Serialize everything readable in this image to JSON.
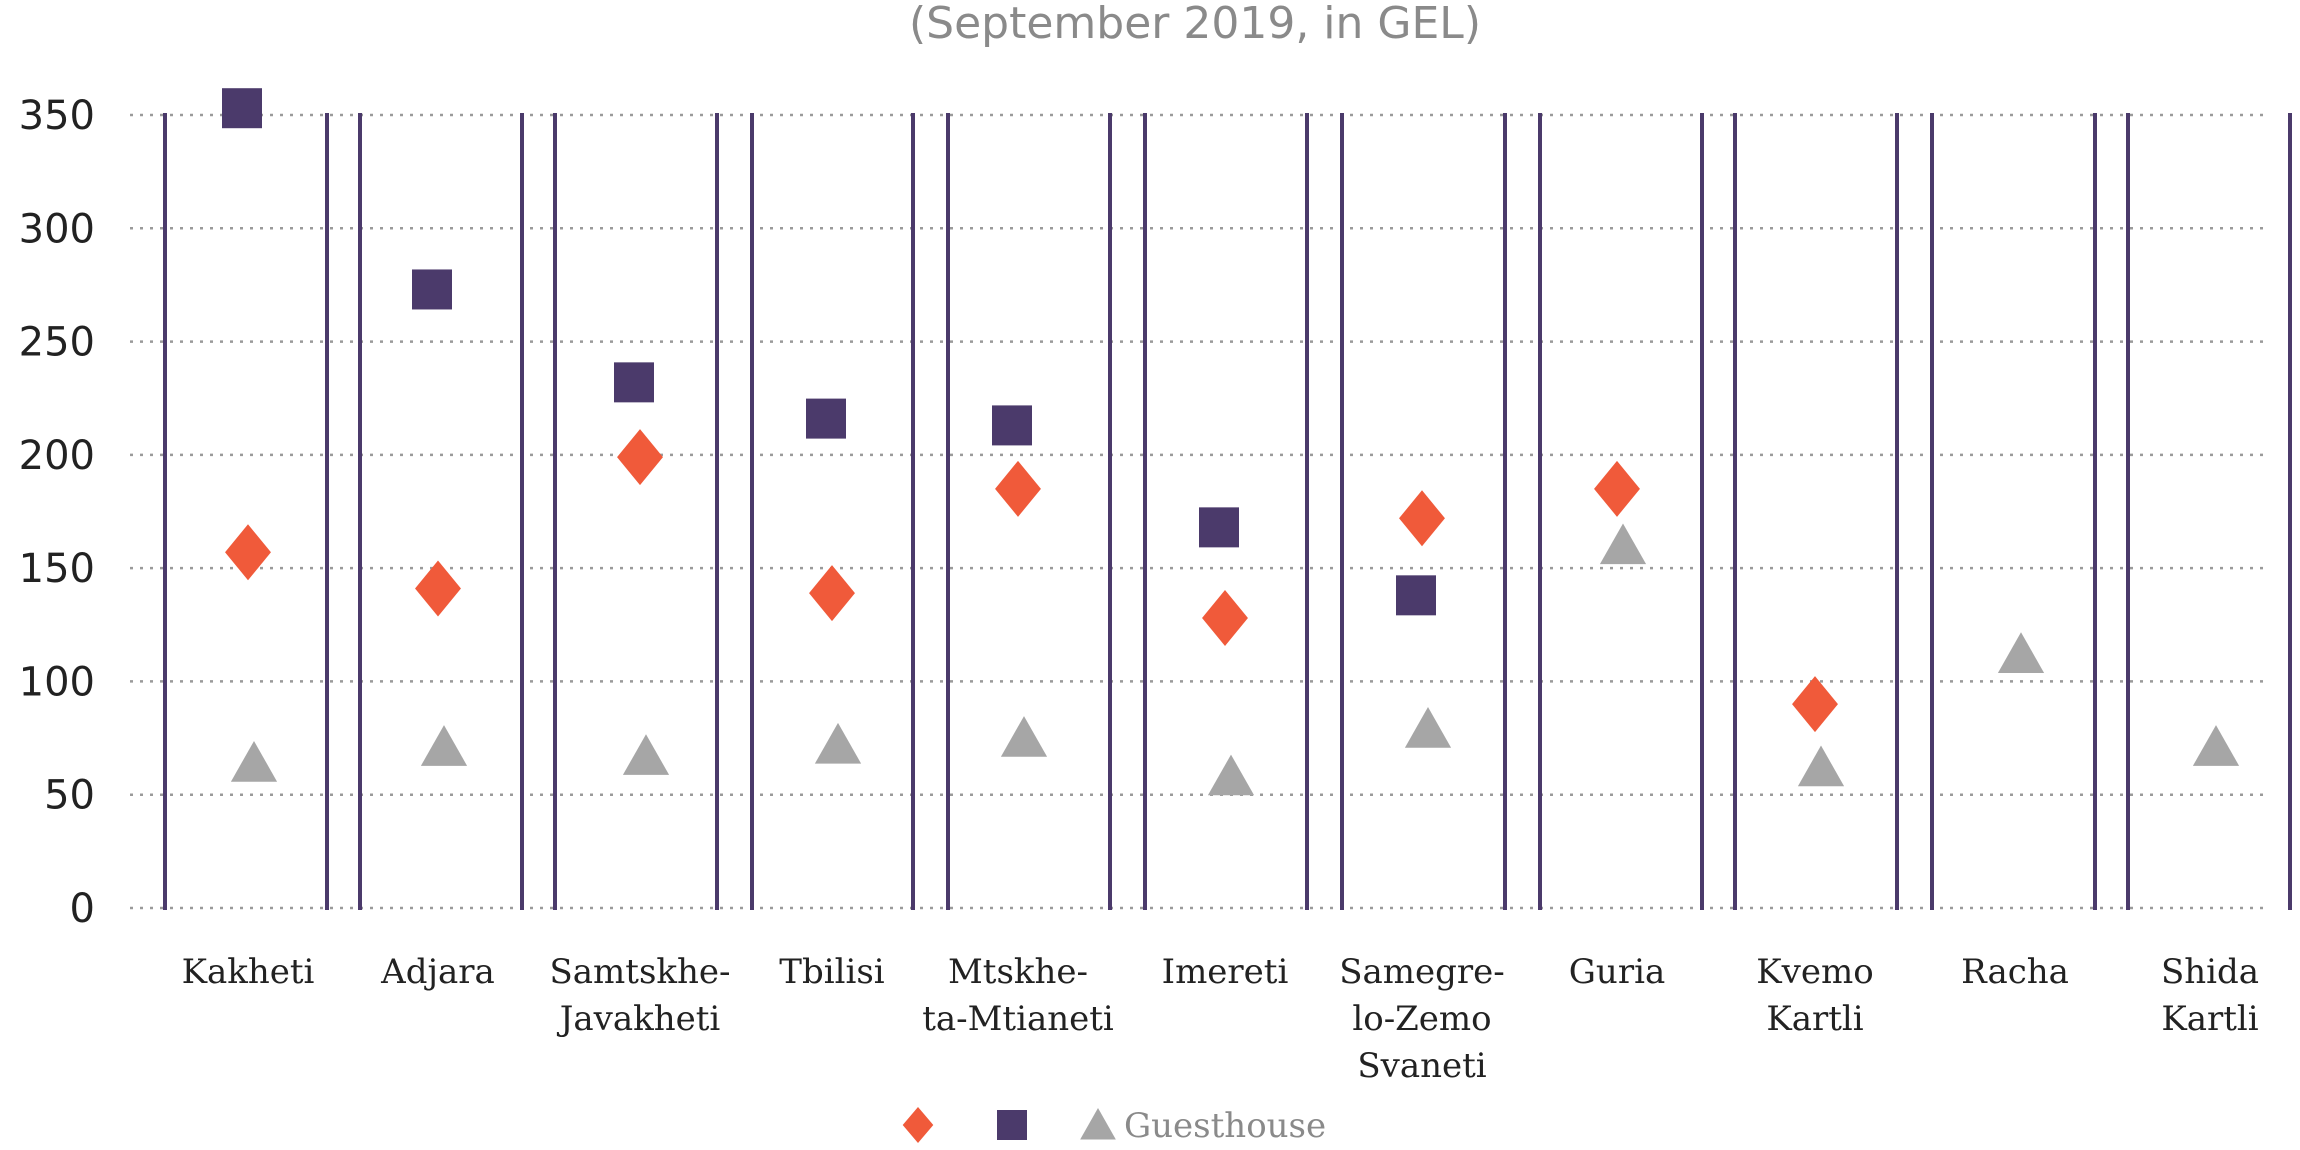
{
  "chart_data": {
    "type": "scatter",
    "subtitle": "(September 2019, in GEL)",
    "ylim": [
      0,
      350
    ],
    "yticks": [
      0,
      50,
      100,
      150,
      200,
      250,
      300,
      350
    ],
    "grid": true,
    "legend_placement": "bottom-center",
    "categories": [
      "Kakheti",
      "Adjara",
      "Samtskhe-Javakheti",
      "Tbilisi",
      "Mtskhe-ta-Mtianeti",
      "Imereti",
      "Samegre-lo-Zemo Svaneti",
      "Guria",
      "Kvemo Kartli",
      "Racha",
      "Shida Kartli"
    ],
    "category_lines": [
      [
        "Kakheti"
      ],
      [
        "Adjara"
      ],
      [
        "Samtskhe-",
        "Javakheti"
      ],
      [
        "Tbilisi"
      ],
      [
        "Mtskhe-",
        "ta-Mtianeti"
      ],
      [
        "Imereti"
      ],
      [
        "Samegre-",
        "lo-Zemo",
        "Svaneti"
      ],
      [
        "Guria"
      ],
      [
        "Kvemo",
        "Kartli"
      ],
      [
        "Racha"
      ],
      [
        "Shida",
        "Kartli"
      ]
    ],
    "series": [
      {
        "marker": "diamond",
        "color": "#f05a3a",
        "values": [
          157,
          141,
          199,
          139,
          185,
          128,
          172,
          185,
          90,
          null,
          null
        ]
      },
      {
        "marker": "square",
        "color": "#4b3a6b",
        "values": [
          353,
          273,
          232,
          216,
          213,
          168,
          138,
          null,
          null,
          null,
          null
        ]
      },
      {
        "name": "Guesthouse",
        "marker": "triangle",
        "color": "#a6a6a6",
        "values": [
          64,
          71,
          67,
          72,
          75,
          58,
          79,
          160,
          62,
          112,
          71
        ]
      }
    ],
    "colors": {
      "grid": "#9a9a9a",
      "divider": "#4b3a6b"
    }
  }
}
